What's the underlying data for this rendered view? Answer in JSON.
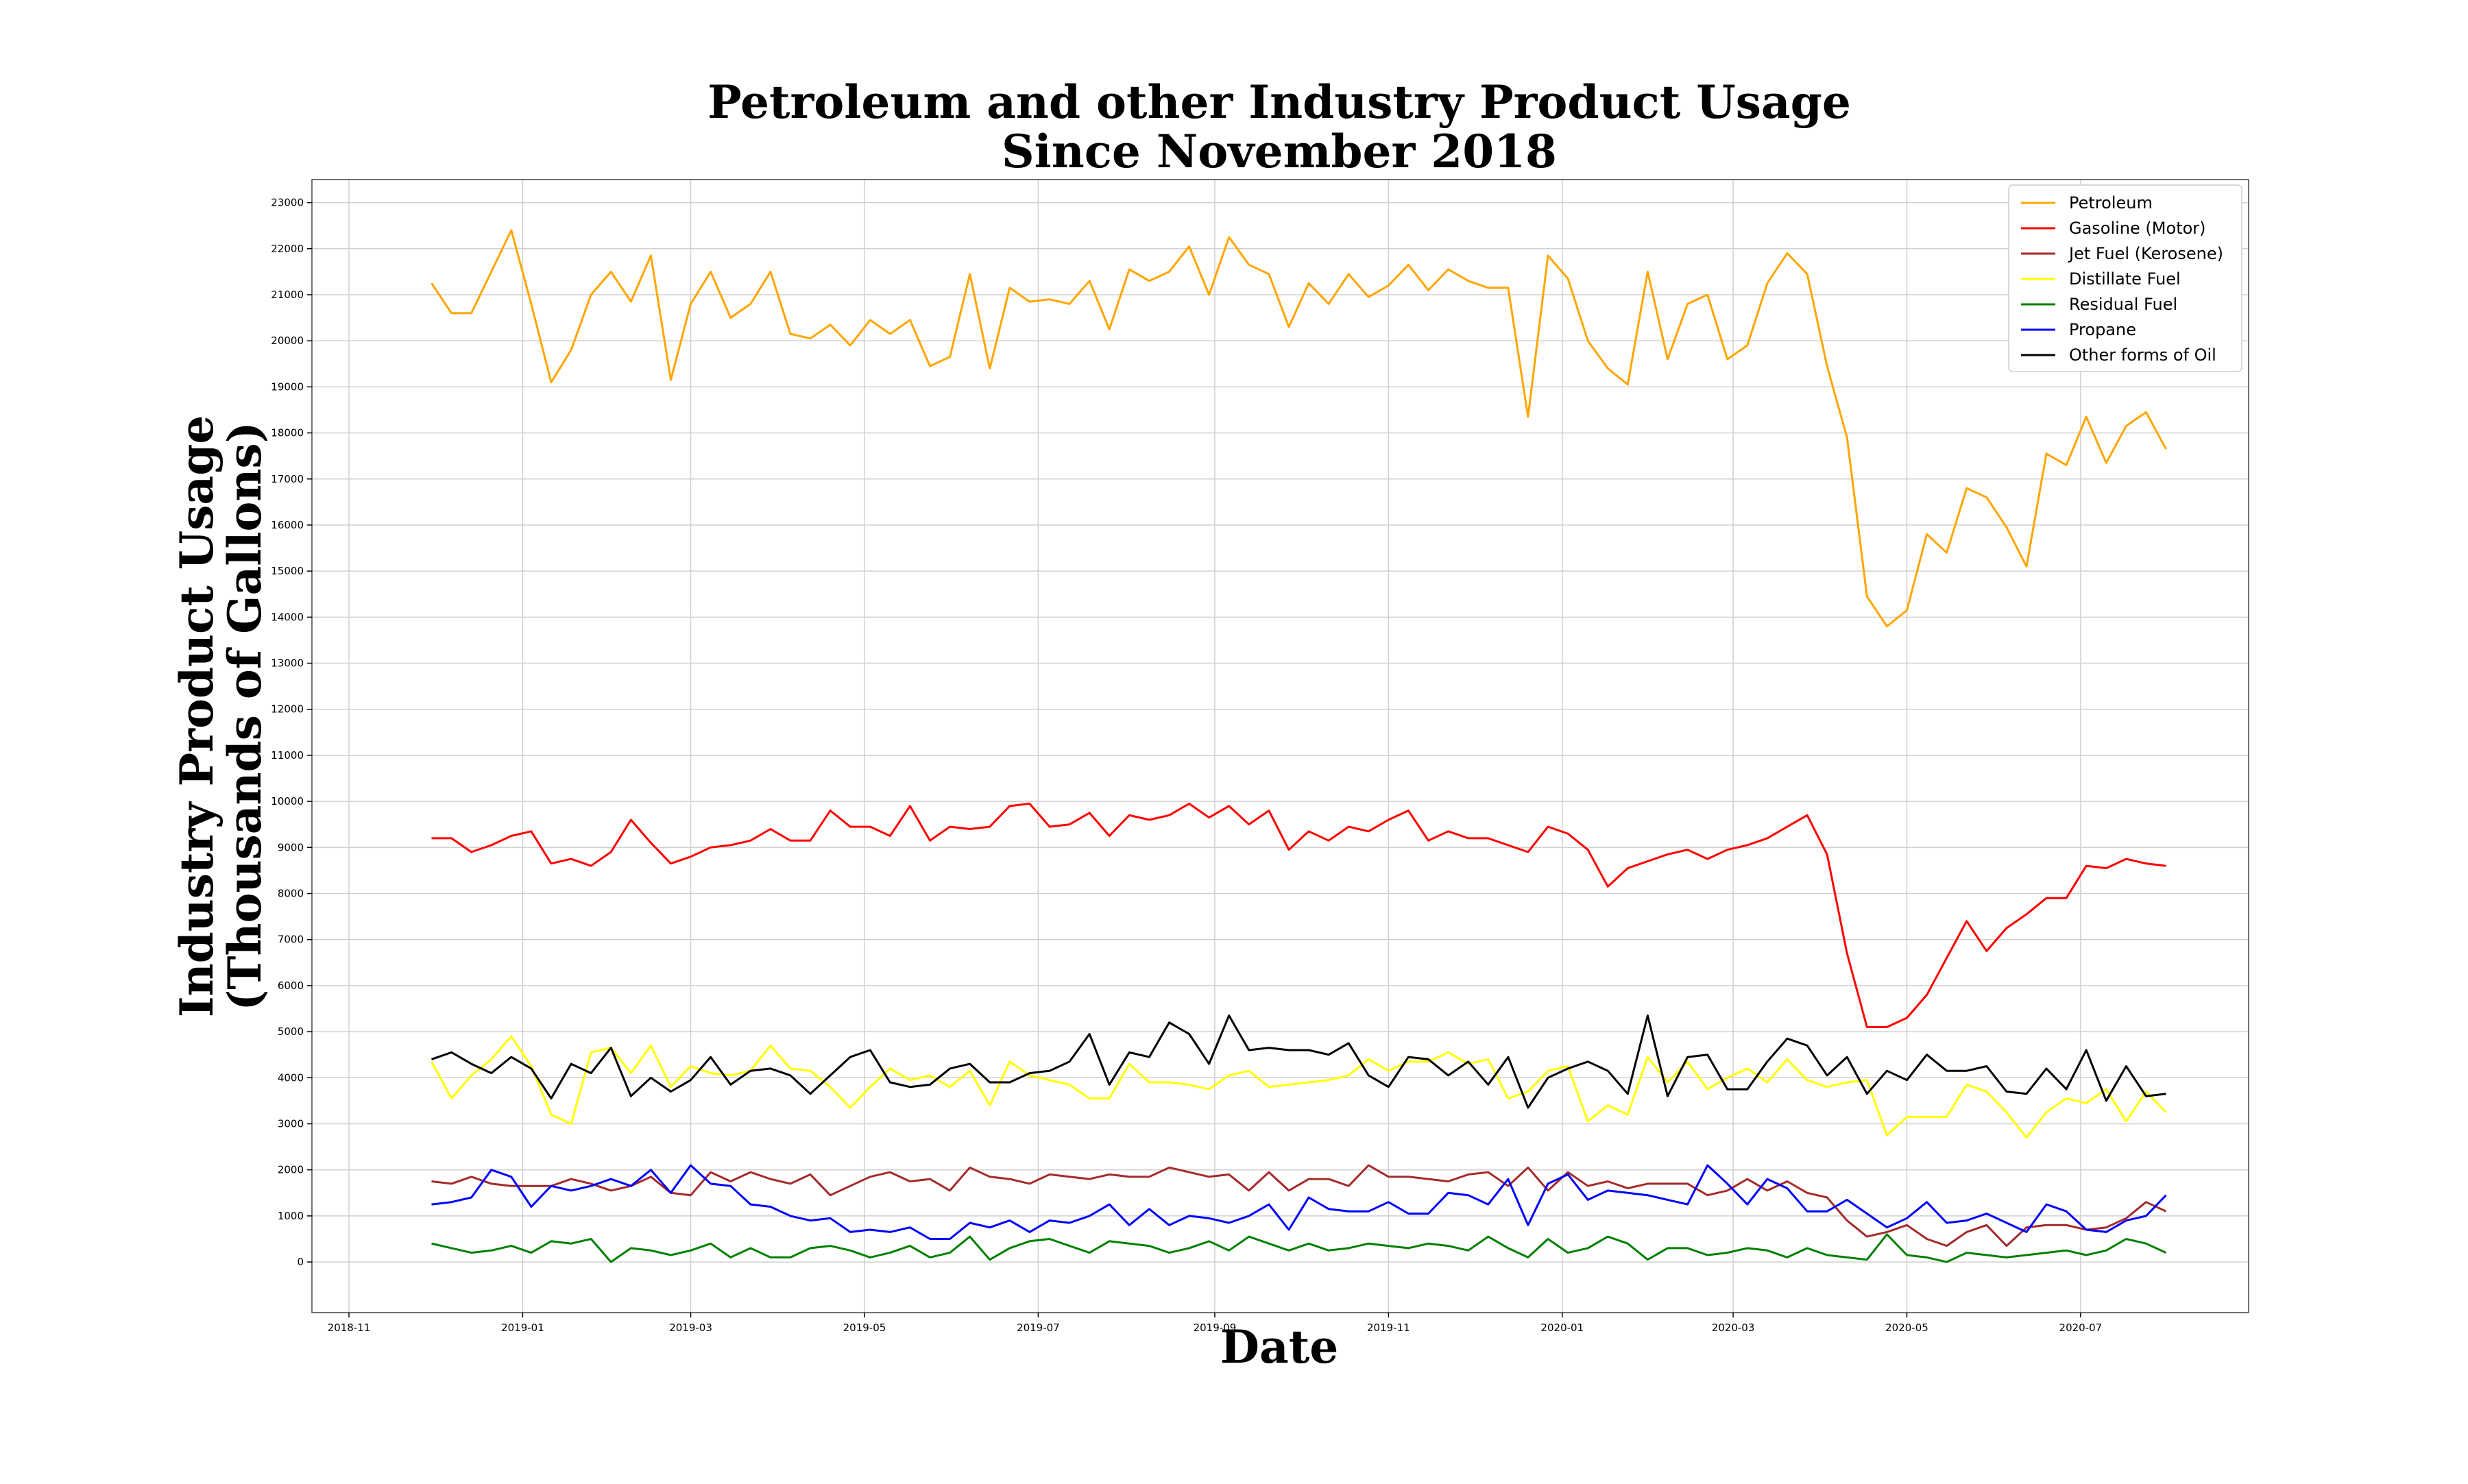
{
  "chart_data": {
    "type": "line",
    "title": [
      "Petroleum and other Industry Product Usage",
      "Since November 2018"
    ],
    "xlabel": "Date",
    "ylabel": [
      "Industry Product Usage",
      "(Thousands of Gallons)"
    ],
    "ylim": [
      -1100,
      23500
    ],
    "yticks": [
      0,
      1000,
      2000,
      3000,
      4000,
      5000,
      6000,
      7000,
      8000,
      9000,
      10000,
      11000,
      12000,
      13000,
      14000,
      15000,
      16000,
      17000,
      18000,
      19000,
      20000,
      21000,
      22000,
      23000
    ],
    "xlim": [
      "2018-10-19",
      "2020-08-29"
    ],
    "xticks": [
      {
        "date": "2018-11-01",
        "label": "2018-11"
      },
      {
        "date": "2019-01-01",
        "label": "2019-01"
      },
      {
        "date": "2019-03-01",
        "label": "2019-03"
      },
      {
        "date": "2019-05-01",
        "label": "2019-05"
      },
      {
        "date": "2019-07-01",
        "label": "2019-07"
      },
      {
        "date": "2019-09-01",
        "label": "2019-09"
      },
      {
        "date": "2019-11-01",
        "label": "2019-11"
      },
      {
        "date": "2020-01-01",
        "label": "2020-01"
      },
      {
        "date": "2020-03-01",
        "label": "2020-03"
      },
      {
        "date": "2020-05-01",
        "label": "2020-05"
      },
      {
        "date": "2020-07-01",
        "label": "2020-07"
      }
    ],
    "grid": true,
    "legend_position": "top-right",
    "x": [
      "2018-11-30",
      "2018-12-07",
      "2018-12-14",
      "2018-12-21",
      "2018-12-28",
      "2019-01-04",
      "2019-01-11",
      "2019-01-18",
      "2019-01-25",
      "2019-02-01",
      "2019-02-08",
      "2019-02-15",
      "2019-02-22",
      "2019-03-01",
      "2019-03-08",
      "2019-03-15",
      "2019-03-22",
      "2019-03-29",
      "2019-04-05",
      "2019-04-12",
      "2019-04-19",
      "2019-04-26",
      "2019-05-03",
      "2019-05-10",
      "2019-05-17",
      "2019-05-24",
      "2019-05-31",
      "2019-06-07",
      "2019-06-14",
      "2019-06-21",
      "2019-06-28",
      "2019-07-05",
      "2019-07-12",
      "2019-07-19",
      "2019-07-26",
      "2019-08-02",
      "2019-08-09",
      "2019-08-16",
      "2019-08-23",
      "2019-08-30",
      "2019-09-06",
      "2019-09-13",
      "2019-09-20",
      "2019-09-27",
      "2019-10-04",
      "2019-10-11",
      "2019-10-18",
      "2019-10-25",
      "2019-11-01",
      "2019-11-08",
      "2019-11-15",
      "2019-11-22",
      "2019-11-29",
      "2019-12-06",
      "2019-12-13",
      "2019-12-20",
      "2019-12-27",
      "2020-01-03",
      "2020-01-10",
      "2020-01-17",
      "2020-01-24",
      "2020-01-31",
      "2020-02-07",
      "2020-02-14",
      "2020-02-21",
      "2020-02-28",
      "2020-03-06",
      "2020-03-13",
      "2020-03-20",
      "2020-03-27",
      "2020-04-03",
      "2020-04-10",
      "2020-04-17",
      "2020-04-24",
      "2020-05-01",
      "2020-05-08",
      "2020-05-15",
      "2020-05-22",
      "2020-05-29",
      "2020-06-05",
      "2020-06-12",
      "2020-06-19",
      "2020-06-26",
      "2020-07-03",
      "2020-07-10",
      "2020-07-17",
      "2020-07-24",
      "2020-07-31"
    ],
    "series": [
      {
        "name": "Petroleum",
        "color": "#ffa500",
        "values": [
          21250,
          20600,
          20600,
          21500,
          22400,
          20800,
          19100,
          19800,
          21000,
          21500,
          20850,
          21850,
          19150,
          20800,
          21500,
          20500,
          20800,
          21500,
          20150,
          20050,
          20350,
          19900,
          20450,
          20150,
          20450,
          19450,
          19650,
          21450,
          19400,
          21150,
          20850,
          20900,
          20800,
          21300,
          20250,
          21550,
          21300,
          21500,
          22050,
          21000,
          22250,
          21650,
          21450,
          20300,
          21250,
          20800,
          21450,
          20950,
          21200,
          21650,
          21100,
          21550,
          21300,
          21150,
          21150,
          18350,
          21850,
          21350,
          20000,
          19400,
          19050,
          21500,
          19600,
          20800,
          21000,
          19600,
          19900,
          21250,
          21900,
          21450,
          19450,
          17900,
          14450,
          13800,
          14150,
          15800,
          15400,
          16800,
          16600,
          15950,
          15100,
          17550,
          17300,
          18350,
          17350,
          18150,
          18450,
          17650
        ]
      },
      {
        "name": "Gasoline (Motor)",
        "color": "#ff0000",
        "values": [
          9200,
          9200,
          8900,
          9050,
          9250,
          9350,
          8650,
          8750,
          8600,
          8900,
          9600,
          9100,
          8650,
          8800,
          9000,
          9050,
          9150,
          9400,
          9150,
          9150,
          9800,
          9450,
          9450,
          9250,
          9900,
          9150,
          9450,
          9400,
          9450,
          9900,
          9950,
          9450,
          9500,
          9750,
          9250,
          9700,
          9600,
          9700,
          9950,
          9650,
          9900,
          9500,
          9800,
          8950,
          9350,
          9150,
          9450,
          9350,
          9600,
          9800,
          9150,
          9350,
          9200,
          9200,
          9050,
          8900,
          9450,
          9300,
          8950,
          8150,
          8550,
          8700,
          8850,
          8950,
          8750,
          8950,
          9050,
          9200,
          9450,
          9700,
          8850,
          6700,
          5100,
          5100,
          5300,
          5800,
          6600,
          7400,
          6750,
          7250,
          7550,
          7900,
          7900,
          8600,
          8550,
          8750,
          8650,
          8600
        ]
      },
      {
        "name": "Jet Fuel (Kerosene)",
        "color": "#a52a2a",
        "values": [
          1750,
          1700,
          1850,
          1700,
          1650,
          1650,
          1650,
          1800,
          1700,
          1550,
          1650,
          1850,
          1500,
          1450,
          1950,
          1750,
          1950,
          1800,
          1700,
          1900,
          1450,
          1650,
          1850,
          1950,
          1750,
          1800,
          1550,
          2050,
          1850,
          1800,
          1700,
          1900,
          1850,
          1800,
          1900,
          1850,
          1850,
          2050,
          1950,
          1850,
          1900,
          1550,
          1950,
          1550,
          1800,
          1800,
          1650,
          2100,
          1850,
          1850,
          1800,
          1750,
          1900,
          1950,
          1650,
          2050,
          1550,
          1950,
          1650,
          1750,
          1600,
          1700,
          1700,
          1700,
          1450,
          1550,
          1800,
          1550,
          1750,
          1500,
          1400,
          900,
          550,
          650,
          800,
          500,
          350,
          650,
          800,
          350,
          750,
          800,
          800,
          700,
          750,
          950,
          1300,
          1100
        ]
      },
      {
        "name": "Distillate Fuel",
        "color": "#ffff00",
        "values": [
          4350,
          3550,
          4050,
          4400,
          4900,
          4250,
          3200,
          3000,
          4550,
          4650,
          4100,
          4700,
          3800,
          4250,
          4100,
          4050,
          4150,
          4700,
          4200,
          4150,
          3800,
          3350,
          3800,
          4200,
          3950,
          4050,
          3800,
          4150,
          3400,
          4350,
          4050,
          3950,
          3850,
          3550,
          3550,
          4300,
          3900,
          3900,
          3850,
          3750,
          4050,
          4150,
          3800,
          3850,
          3900,
          3950,
          4050,
          4400,
          4150,
          4350,
          4350,
          4550,
          4300,
          4400,
          3550,
          3700,
          4150,
          4250,
          3050,
          3400,
          3200,
          4450,
          3900,
          4350,
          3750,
          4000,
          4200,
          3900,
          4400,
          3950,
          3800,
          3900,
          3950,
          2750,
          3150,
          3150,
          3150,
          3850,
          3700,
          3250,
          2700,
          3250,
          3550,
          3450,
          3750,
          3050,
          3700,
          3250
        ]
      },
      {
        "name": "Residual Fuel",
        "color": "#008000",
        "values": [
          400,
          300,
          200,
          250,
          350,
          200,
          450,
          400,
          500,
          0,
          300,
          250,
          150,
          250,
          400,
          100,
          300,
          100,
          100,
          300,
          350,
          250,
          100,
          200,
          350,
          100,
          200,
          550,
          50,
          300,
          450,
          500,
          350,
          200,
          450,
          400,
          350,
          200,
          300,
          450,
          250,
          550,
          400,
          250,
          400,
          250,
          300,
          400,
          350,
          300,
          400,
          350,
          250,
          550,
          300,
          100,
          500,
          200,
          300,
          550,
          400,
          50,
          300,
          300,
          150,
          200,
          300,
          250,
          100,
          300,
          150,
          100,
          50,
          600,
          150,
          100,
          0,
          200,
          150,
          100,
          150,
          200,
          250,
          150,
          250,
          500,
          400,
          200
        ]
      },
      {
        "name": "Propane",
        "color": "#0000ff",
        "values": [
          1250,
          1300,
          1400,
          2000,
          1850,
          1200,
          1650,
          1550,
          1650,
          1800,
          1650,
          2000,
          1500,
          2100,
          1700,
          1650,
          1250,
          1200,
          1000,
          900,
          950,
          650,
          700,
          650,
          750,
          500,
          500,
          850,
          750,
          900,
          650,
          900,
          850,
          1000,
          1250,
          800,
          1150,
          800,
          1000,
          950,
          850,
          1000,
          1250,
          700,
          1400,
          1150,
          1100,
          1100,
          1300,
          1050,
          1050,
          1500,
          1450,
          1250,
          1800,
          800,
          1700,
          1900,
          1350,
          1550,
          1500,
          1450,
          1350,
          1250,
          2100,
          1700,
          1250,
          1800,
          1600,
          1100,
          1100,
          1350,
          1050,
          750,
          950,
          1300,
          850,
          900,
          1050,
          850,
          650,
          1250,
          1100,
          700,
          650,
          900,
          1000,
          1450
        ]
      },
      {
        "name": "Other forms of Oil",
        "color": "#000000",
        "values": [
          4400,
          4550,
          4300,
          4100,
          4450,
          4200,
          3550,
          4300,
          4100,
          4650,
          3600,
          4000,
          3700,
          3950,
          4450,
          3850,
          4150,
          4200,
          4050,
          3650,
          4050,
          4450,
          4600,
          3900,
          3800,
          3850,
          4200,
          4300,
          3900,
          3900,
          4100,
          4150,
          4350,
          4950,
          3850,
          4550,
          4450,
          5200,
          4950,
          4300,
          5350,
          4600,
          4650,
          4600,
          4600,
          4500,
          4750,
          4050,
          3800,
          4450,
          4400,
          4050,
          4350,
          3850,
          4450,
          3350,
          4000,
          4200,
          4350,
          4150,
          3650,
          5350,
          3600,
          4450,
          4500,
          3750,
          3750,
          4350,
          4850,
          4700,
          4050,
          4450,
          3650,
          4150,
          3950,
          4500,
          4150,
          4150,
          4250,
          3700,
          3650,
          4200,
          3750,
          4600,
          3500,
          4250,
          3600,
          3650
        ]
      }
    ]
  }
}
